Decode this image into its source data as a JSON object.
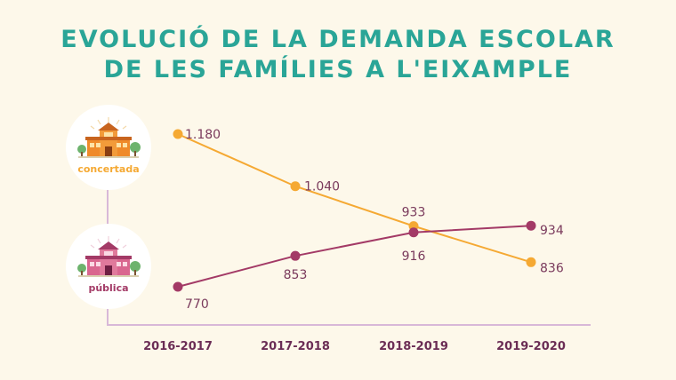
{
  "title": {
    "line1": "EVOLUCIÓ DE LA DEMANDA ESCOLAR",
    "line2": "DE LES FAMÍLIES A L'EIXAMPLE"
  },
  "legend": {
    "concertada": "concertada",
    "publica": "pública"
  },
  "colors": {
    "concertada": "#f5a933",
    "publica": "#a33a66",
    "title": "#2aa597",
    "axis": "#d8b8d8",
    "background": "#fdf8ea"
  },
  "chart_data": {
    "type": "line",
    "title": "EVOLUCIÓ DE LA DEMANDA ESCOLAR DE LES FAMÍLIES A L'EIXAMPLE",
    "xlabel": "",
    "ylabel": "",
    "categories": [
      "2016-2017",
      "2017-2018",
      "2018-2019",
      "2019-2020"
    ],
    "series": [
      {
        "name": "concertada",
        "values": [
          1180,
          1040,
          933,
          836
        ],
        "labels": [
          "1.180",
          "1.040",
          "933",
          "836"
        ],
        "color": "#f5a933"
      },
      {
        "name": "pública",
        "values": [
          770,
          853,
          916,
          934
        ],
        "labels": [
          "770",
          "853",
          "916",
          "934"
        ],
        "color": "#a33a66"
      }
    ],
    "ylim": [
      700,
      1230
    ],
    "grid": false,
    "legend": "left"
  }
}
